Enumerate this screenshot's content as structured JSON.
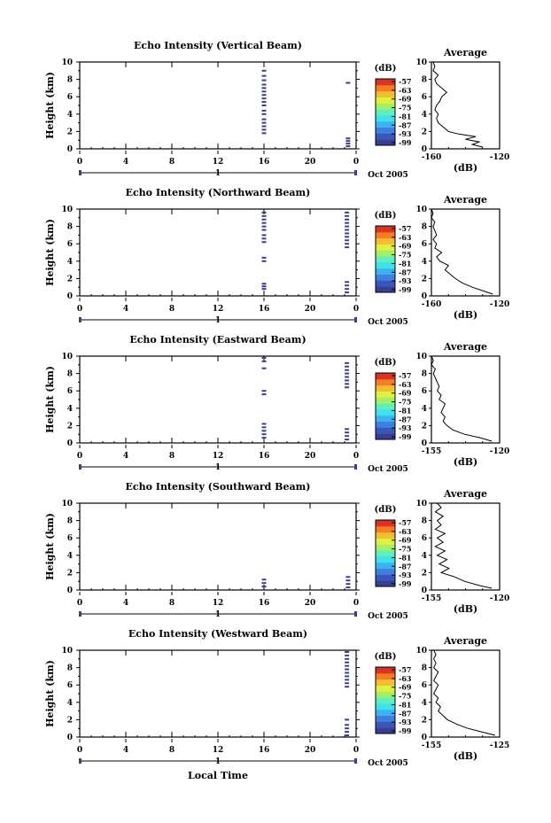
{
  "figure": {
    "x_axis_label": "Local Time",
    "date_label": "Oct 2005",
    "day_label": "1",
    "colorbar_unit": "(dB)",
    "colorbar_ticks": [
      "-57",
      "-63",
      "-69",
      "-75",
      "-81",
      "-87",
      "-93",
      "-99"
    ],
    "colors": {
      "echo": "#3b3f8a",
      "colorbar": [
        "#3a3f8c",
        "#3c55b8",
        "#3f7fe0",
        "#3fb0f0",
        "#3fe0f0",
        "#5cf0c0",
        "#a0f070",
        "#e0f040",
        "#f0c030",
        "#f08020",
        "#e03020"
      ]
    }
  },
  "chart_data": [
    {
      "type": "heatmap",
      "title": "Echo Intensity (Vertical Beam)",
      "ylabel": "Height (km)",
      "xlim": [
        0,
        24
      ],
      "ylim": [
        0,
        10
      ],
      "x_ticks": [
        "0",
        "4",
        "8",
        "12",
        "16",
        "20",
        "0"
      ],
      "y_ticks": [
        "0",
        "2",
        "4",
        "6",
        "8",
        "10"
      ],
      "echoes": [
        {
          "t": 16.0,
          "h": [
            1.8,
            2.2,
            2.6,
            3.0,
            3.4,
            4.0,
            4.4,
            5.0,
            5.4,
            5.8,
            6.2,
            6.6,
            7.0,
            7.4,
            7.9,
            8.4,
            9.0
          ]
        },
        {
          "t": 23.3,
          "h": [
            0.3,
            0.6,
            0.9,
            1.2,
            7.6
          ]
        }
      ],
      "average": {
        "title": "Average",
        "xlabel": "(dB)",
        "xlim": [
          -160,
          -120
        ],
        "x_ticks": [
          "-160",
          "-120"
        ],
        "profile": [
          [
            0.2,
            -130
          ],
          [
            0.5,
            -136
          ],
          [
            0.8,
            -132
          ],
          [
            1.1,
            -140
          ],
          [
            1.4,
            -134
          ],
          [
            1.7,
            -144
          ],
          [
            2.0,
            -150
          ],
          [
            2.5,
            -153
          ],
          [
            3.0,
            -156
          ],
          [
            3.5,
            -157
          ],
          [
            4.0,
            -156
          ],
          [
            4.5,
            -158
          ],
          [
            5.0,
            -157
          ],
          [
            5.5,
            -155
          ],
          [
            6.0,
            -154
          ],
          [
            6.5,
            -151
          ],
          [
            7.0,
            -154
          ],
          [
            7.5,
            -157
          ],
          [
            8.0,
            -158
          ],
          [
            8.5,
            -156
          ],
          [
            9.0,
            -159
          ],
          [
            9.5,
            -158
          ],
          [
            10.0,
            -159
          ]
        ]
      }
    },
    {
      "type": "heatmap",
      "title": "Echo Intensity (Northward Beam)",
      "ylabel": "Height (km)",
      "xlim": [
        0,
        24
      ],
      "ylim": [
        0,
        10
      ],
      "x_ticks": [
        "0",
        "4",
        "8",
        "12",
        "16",
        "20",
        "0"
      ],
      "y_ticks": [
        "0",
        "2",
        "4",
        "6",
        "8",
        "10"
      ],
      "echoes": [
        {
          "t": 16.0,
          "h": [
            0.8,
            1.1,
            1.4,
            4.0,
            4.4,
            6.2,
            6.6,
            7.0,
            7.6,
            8.0,
            8.4,
            8.8,
            9.2,
            9.6
          ]
        },
        {
          "t": 23.2,
          "h": [
            0.4,
            0.8,
            1.2,
            1.6,
            5.6,
            6.0,
            6.4,
            6.8,
            7.2,
            7.6,
            8.0,
            8.4,
            8.8,
            9.2,
            9.6
          ]
        }
      ],
      "average": {
        "title": "Average",
        "xlabel": "(dB)",
        "xlim": [
          -160,
          -120
        ],
        "x_ticks": [
          "-160",
          "-120"
        ],
        "profile": [
          [
            0.2,
            -124
          ],
          [
            0.6,
            -130
          ],
          [
            1.0,
            -136
          ],
          [
            1.5,
            -142
          ],
          [
            2.0,
            -146
          ],
          [
            2.5,
            -149
          ],
          [
            3.0,
            -152
          ],
          [
            3.5,
            -150
          ],
          [
            4.0,
            -155
          ],
          [
            4.5,
            -157
          ],
          [
            5.0,
            -154
          ],
          [
            5.5,
            -158
          ],
          [
            6.0,
            -157
          ],
          [
            6.5,
            -159
          ],
          [
            7.0,
            -157
          ],
          [
            7.5,
            -158
          ],
          [
            8.0,
            -159
          ],
          [
            8.5,
            -158
          ],
          [
            9.0,
            -160
          ],
          [
            9.5,
            -159
          ],
          [
            10.0,
            -160
          ]
        ]
      }
    },
    {
      "type": "heatmap",
      "title": "Echo Intensity (Eastward Beam)",
      "ylabel": "Height (km)",
      "xlim": [
        0,
        24
      ],
      "ylim": [
        0,
        10
      ],
      "x_ticks": [
        "0",
        "4",
        "8",
        "12",
        "16",
        "20",
        "0"
      ],
      "y_ticks": [
        "0",
        "2",
        "4",
        "6",
        "8",
        "10"
      ],
      "echoes": [
        {
          "t": 16.0,
          "h": [
            0.6,
            1.0,
            1.4,
            1.8,
            2.2,
            5.6,
            6.0,
            8.6,
            9.4,
            9.8
          ]
        },
        {
          "t": 23.2,
          "h": [
            0.4,
            0.8,
            1.2,
            1.6,
            6.4,
            6.8,
            7.2,
            7.6,
            8.0,
            8.4,
            8.8,
            9.2
          ]
        }
      ],
      "average": {
        "title": "Average",
        "xlabel": "(dB)",
        "xlim": [
          -155,
          -120
        ],
        "x_ticks": [
          "-155",
          "-120"
        ],
        "profile": [
          [
            0.2,
            -124
          ],
          [
            0.6,
            -130
          ],
          [
            1.0,
            -138
          ],
          [
            1.5,
            -144
          ],
          [
            2.0,
            -147
          ],
          [
            2.5,
            -149
          ],
          [
            3.0,
            -148
          ],
          [
            3.5,
            -150
          ],
          [
            4.0,
            -149
          ],
          [
            4.5,
            -148
          ],
          [
            5.0,
            -151
          ],
          [
            5.5,
            -150
          ],
          [
            6.0,
            -152
          ],
          [
            6.5,
            -151
          ],
          [
            7.0,
            -152
          ],
          [
            7.5,
            -153
          ],
          [
            8.0,
            -154
          ],
          [
            8.5,
            -153
          ],
          [
            9.0,
            -155
          ],
          [
            9.5,
            -154
          ],
          [
            10.0,
            -155
          ]
        ]
      }
    },
    {
      "type": "heatmap",
      "title": "Echo Intensity (Southward Beam)",
      "ylabel": "Height (km)",
      "xlim": [
        0,
        24
      ],
      "ylim": [
        0,
        10
      ],
      "x_ticks": [
        "0",
        "4",
        "8",
        "12",
        "16",
        "20",
        "0"
      ],
      "y_ticks": [
        "0",
        "2",
        "4",
        "6",
        "8",
        "10"
      ],
      "echoes": [
        {
          "t": 16.0,
          "h": [
            0.4,
            0.8,
            1.2
          ]
        },
        {
          "t": 23.3,
          "h": [
            0.3,
            0.7,
            1.1,
            1.5
          ]
        }
      ],
      "average": {
        "title": "Average",
        "xlabel": "(dB)",
        "xlim": [
          -155,
          -120
        ],
        "x_ticks": [
          "-155",
          "-120"
        ],
        "profile": [
          [
            0.2,
            -124
          ],
          [
            0.5,
            -130
          ],
          [
            1.0,
            -138
          ],
          [
            1.5,
            -143
          ],
          [
            2.0,
            -150
          ],
          [
            2.5,
            -146
          ],
          [
            3.0,
            -151
          ],
          [
            3.5,
            -147
          ],
          [
            4.0,
            -152
          ],
          [
            4.5,
            -148
          ],
          [
            5.0,
            -153
          ],
          [
            5.5,
            -149
          ],
          [
            6.0,
            -152
          ],
          [
            6.5,
            -148
          ],
          [
            7.0,
            -153
          ],
          [
            7.5,
            -150
          ],
          [
            8.0,
            -152
          ],
          [
            8.5,
            -149
          ],
          [
            9.0,
            -153
          ],
          [
            9.5,
            -150
          ],
          [
            10.0,
            -152
          ]
        ]
      }
    },
    {
      "type": "heatmap",
      "title": "Echo Intensity (Westward Beam)",
      "ylabel": "Height (km)",
      "xlim": [
        0,
        24
      ],
      "ylim": [
        0,
        10
      ],
      "x_ticks": [
        "0",
        "4",
        "8",
        "12",
        "16",
        "20",
        "0"
      ],
      "y_ticks": [
        "0",
        "2",
        "4",
        "6",
        "8",
        "10"
      ],
      "echoes": [
        {
          "t": 23.2,
          "h": [
            0.2,
            0.6,
            1.0,
            1.4,
            2.0,
            5.8,
            6.2,
            6.6,
            7.0,
            7.4,
            7.8,
            8.2,
            8.6,
            9.0,
            9.4,
            9.8
          ]
        }
      ],
      "average": {
        "title": "Average",
        "xlabel": "(dB)",
        "xlim": [
          -155,
          -125
        ],
        "x_ticks": [
          "-155",
          "-125"
        ],
        "profile": [
          [
            0.2,
            -127
          ],
          [
            0.6,
            -133
          ],
          [
            1.0,
            -139
          ],
          [
            1.5,
            -144
          ],
          [
            2.0,
            -148
          ],
          [
            2.5,
            -150
          ],
          [
            3.0,
            -152
          ],
          [
            3.5,
            -151
          ],
          [
            4.0,
            -153
          ],
          [
            4.5,
            -152
          ],
          [
            5.0,
            -154
          ],
          [
            5.5,
            -153
          ],
          [
            6.0,
            -152
          ],
          [
            6.5,
            -154
          ],
          [
            7.0,
            -153
          ],
          [
            7.5,
            -152
          ],
          [
            8.0,
            -154
          ],
          [
            8.5,
            -153
          ],
          [
            9.0,
            -154
          ],
          [
            9.5,
            -153
          ],
          [
            10.0,
            -154
          ]
        ]
      }
    }
  ]
}
